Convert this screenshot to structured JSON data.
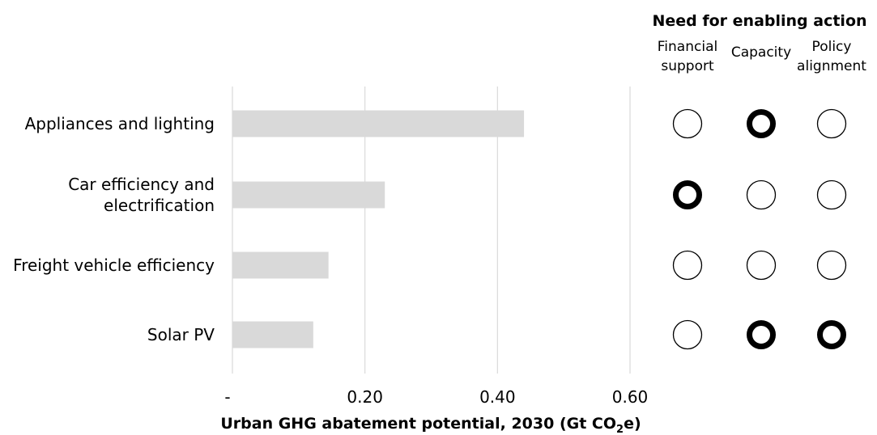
{
  "chart_data": {
    "type": "bar",
    "orientation": "horizontal",
    "categories": [
      "Appliances and lighting",
      "Car efficiency and electrification",
      "Freight vehicle efficiency",
      "Solar PV"
    ],
    "category_lines": [
      [
        "Appliances and lighting"
      ],
      [
        "Car efficiency and",
        "electrification"
      ],
      [
        "Freight vehicle efficiency"
      ],
      [
        "Solar PV"
      ]
    ],
    "values": [
      0.44,
      0.23,
      0.145,
      0.122
    ],
    "xlim": [
      0,
      0.6
    ],
    "x_ticks": [
      0,
      0.2,
      0.4,
      0.6
    ],
    "x_tick_labels": [
      "-",
      "0.20",
      "0.40",
      "0.60"
    ],
    "xlabel_parts": [
      "Urban GHG abatement potential, 2030 (Gt CO",
      "2",
      "e)"
    ],
    "grid": "vertical",
    "bar_color": "#d9d9d9"
  },
  "enabling_action": {
    "title": "Need for enabling action",
    "columns": [
      {
        "lines": [
          "Financial",
          "support"
        ]
      },
      {
        "lines": [
          "Capacity"
        ]
      },
      {
        "lines": [
          "Policy",
          "alignment"
        ]
      }
    ],
    "levels": [
      [
        "low",
        "high",
        "low"
      ],
      [
        "high",
        "low",
        "low"
      ],
      [
        "low",
        "low",
        "low"
      ],
      [
        "low",
        "high",
        "high"
      ]
    ]
  }
}
